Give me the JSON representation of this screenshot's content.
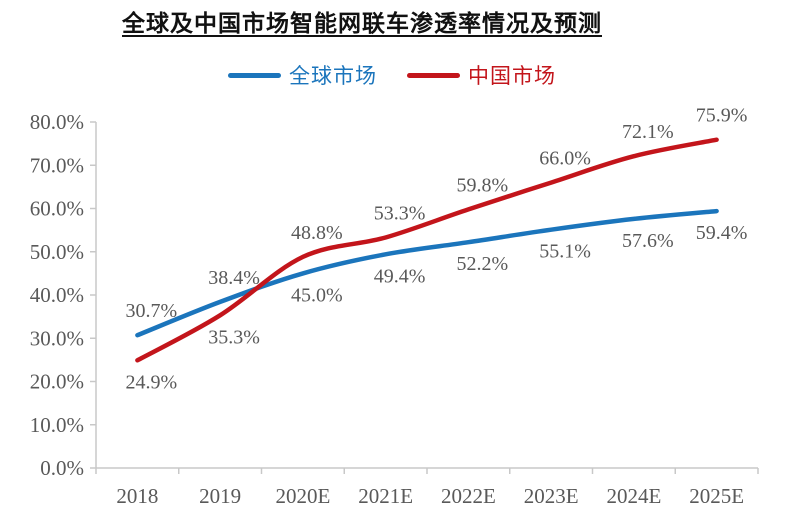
{
  "title": "全球及中国市场智能网联车渗透率情况及预测",
  "legend": [
    {
      "label": "全球市场",
      "color": "#1B75BC"
    },
    {
      "label": "中国市场",
      "color": "#C3151B"
    }
  ],
  "chart_data": {
    "type": "line",
    "title": "全球及中国市场智能网联车渗透率情况及预测",
    "categories": [
      "2018",
      "2019",
      "2020E",
      "2021E",
      "2022E",
      "2023E",
      "2024E",
      "2025E"
    ],
    "series": [
      {
        "name": "全球市场",
        "color": "#1B75BC",
        "values": [
          30.7,
          38.4,
          45.0,
          49.4,
          52.2,
          55.1,
          57.6,
          59.4
        ],
        "labels": [
          "30.7%",
          "38.4%",
          "45.0%",
          "49.4%",
          "52.2%",
          "55.1%",
          "57.6%",
          "59.4%"
        ],
        "label_side": [
          "above",
          "above",
          "below",
          "below",
          "below",
          "below",
          "below",
          "below"
        ]
      },
      {
        "name": "中国市场",
        "color": "#C3151B",
        "values": [
          24.9,
          35.3,
          48.8,
          53.3,
          59.8,
          66.0,
          72.1,
          75.9
        ],
        "labels": [
          "24.9%",
          "35.3%",
          "48.8%",
          "53.3%",
          "59.8%",
          "66.0%",
          "72.1%",
          "75.9%"
        ],
        "label_side": [
          "below",
          "below",
          "above",
          "above",
          "above",
          "above",
          "above",
          "above"
        ]
      }
    ],
    "y_ticks": [
      "0.0%",
      "10.0%",
      "20.0%",
      "30.0%",
      "40.0%",
      "50.0%",
      "60.0%",
      "70.0%",
      "80.0%"
    ],
    "ylim": [
      0,
      80
    ],
    "grid": false,
    "legend_position": "top",
    "label_color": "#595959",
    "axis_color": "#C8C8C8"
  }
}
